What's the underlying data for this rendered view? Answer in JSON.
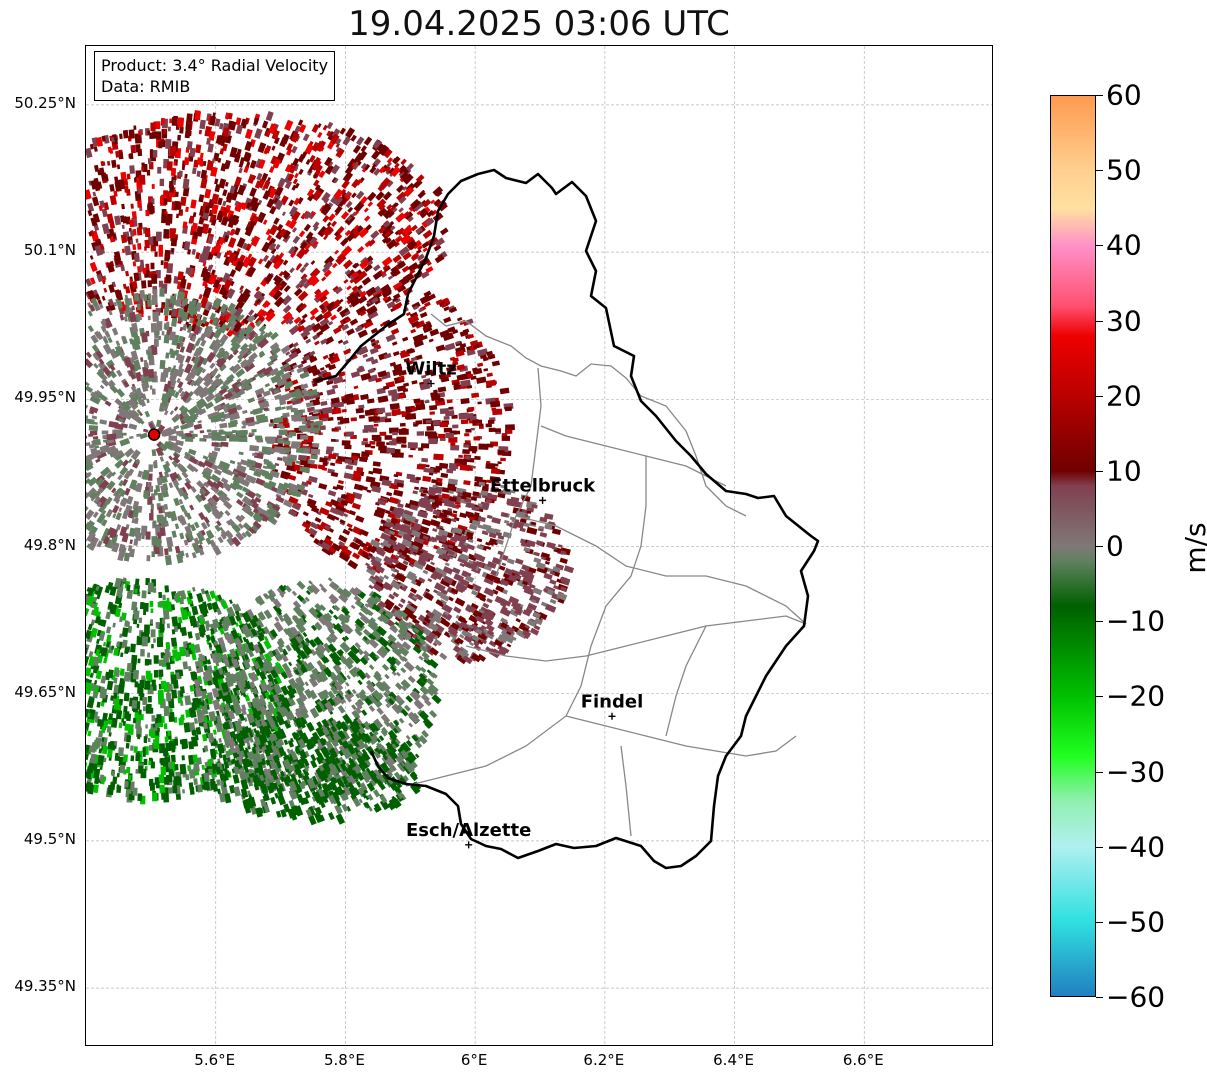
{
  "title": "19.04.2025 03:06 UTC",
  "info_box": {
    "product": "Product: 3.4° Radial Velocity",
    "source": "Data: RMIB"
  },
  "map": {
    "lat_range": [
      49.29,
      50.31
    ],
    "lon_range": [
      5.4,
      6.8
    ],
    "lat_ticks": [
      {
        "value": 50.25,
        "label": "50.25°N"
      },
      {
        "value": 50.1,
        "label": "50.1°N"
      },
      {
        "value": 49.95,
        "label": "49.95°N"
      },
      {
        "value": 49.8,
        "label": "49.8°N"
      },
      {
        "value": 49.65,
        "label": "49.65°N"
      },
      {
        "value": 49.5,
        "label": "49.5°N"
      },
      {
        "value": 49.35,
        "label": "49.35°N"
      }
    ],
    "lon_ticks": [
      {
        "value": 5.6,
        "label": "5.6°E"
      },
      {
        "value": 5.8,
        "label": "5.8°E"
      },
      {
        "value": 6.0,
        "label": "6°E"
      },
      {
        "value": 6.2,
        "label": "6.2°E"
      },
      {
        "value": 6.4,
        "label": "6.4°E"
      },
      {
        "value": 6.6,
        "label": "6.6°E"
      }
    ],
    "radar_site": {
      "lon": 5.505,
      "lat": 49.914
    },
    "cities": [
      {
        "name": "Wiltz",
        "lon": 5.932,
        "lat": 49.966
      },
      {
        "name": "Ettelbruck",
        "lon": 6.104,
        "lat": 49.847
      },
      {
        "name": "Findel",
        "lon": 6.211,
        "lat": 49.627
      },
      {
        "name": "Esch/Alzette",
        "lon": 5.99,
        "lat": 49.496
      }
    ]
  },
  "colorbar": {
    "unit": "m/s",
    "min": -60,
    "max": 60,
    "ticks": [
      {
        "value": 60,
        "label": "60"
      },
      {
        "value": 50,
        "label": "50"
      },
      {
        "value": 40,
        "label": "40"
      },
      {
        "value": 30,
        "label": "30"
      },
      {
        "value": 20,
        "label": "20"
      },
      {
        "value": 10,
        "label": "10"
      },
      {
        "value": 0,
        "label": "0"
      },
      {
        "value": -10,
        "label": "−10"
      },
      {
        "value": -20,
        "label": "−20"
      },
      {
        "value": -30,
        "label": "−30"
      },
      {
        "value": -40,
        "label": "−40"
      },
      {
        "value": -50,
        "label": "−50"
      },
      {
        "value": -60,
        "label": "−60"
      }
    ],
    "colors": {
      "c60": "#ff9a50",
      "c50": "#ffd090",
      "c45": "#ffe0a0",
      "c40": "#ff90c8",
      "c32": "#ff5070",
      "c28": "#ee0000",
      "c20": "#bb0000",
      "c10": "#700000",
      "c8": "#804050",
      "c0": "#807878",
      "cm2": "#608060",
      "cm8": "#006000",
      "cm20": "#00c000",
      "cm28": "#20ff20",
      "cm34": "#90f0b0",
      "cm40": "#b0f0f0",
      "cm50": "#30e0e0",
      "cm60": "#2080c0"
    }
  }
}
